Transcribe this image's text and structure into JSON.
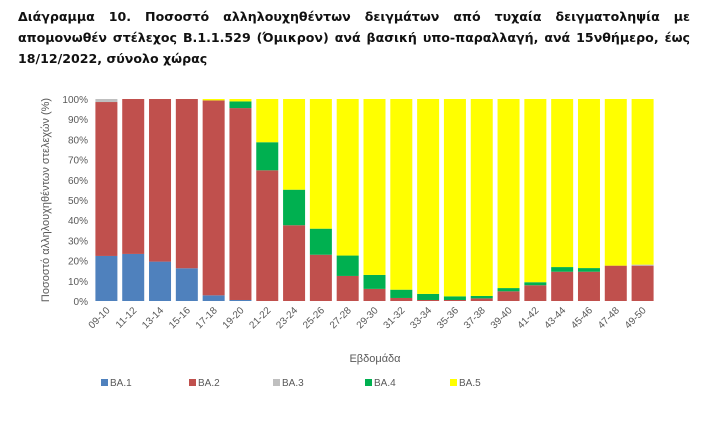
{
  "title": "Διάγραμμα 10. Ποσοστό αλληλουχηθέντων δειγμάτων από τυχαία δειγματοληψία με απομονωθέν στέλεχος Β.1.1.529 (Όμικρον) ανά βασική υπο-παραλλαγή, ανά 15νθήμερο, έως 18/12/2022, σύνολο χώρας",
  "chart_data": {
    "type": "bar",
    "stacked": true,
    "percent": true,
    "xlabel": "Εβδομάδα",
    "ylabel": "Ποσοστό αλληλουχηθέντων στελεχών (%)",
    "ylim": [
      0,
      100
    ],
    "yticks": [
      "0%",
      "10%",
      "20%",
      "30%",
      "40%",
      "50%",
      "60%",
      "70%",
      "80%",
      "90%",
      "100%"
    ],
    "legend_position": "bottom",
    "grid": false,
    "categories": [
      "09-10",
      "11-12",
      "13-14",
      "15-16",
      "17-18",
      "19-20",
      "21-22",
      "23-24",
      "25-26",
      "27-28",
      "29-30",
      "31-32",
      "33-34",
      "35-36",
      "37-38",
      "39-40",
      "41-42",
      "43-44",
      "45-46",
      "47-48",
      "49-50"
    ],
    "series": [
      {
        "name": "BA.1",
        "color": "#4f81bd",
        "values": [
          22.3,
          23.3,
          19.5,
          16.2,
          2.8,
          0.5,
          0,
          0,
          0,
          0,
          0,
          0,
          0,
          0,
          0,
          0,
          0,
          0,
          0,
          0,
          0
        ]
      },
      {
        "name": "BA.2",
        "color": "#c0504d",
        "values": [
          76.2,
          76.7,
          80.5,
          83.8,
          96.5,
          95.0,
          64.7,
          37.5,
          22.9,
          12.4,
          6.0,
          1.5,
          0.5,
          0.5,
          1.3,
          4.8,
          7.8,
          14.5,
          14.5,
          17.5,
          17.5
        ]
      },
      {
        "name": "BA.3",
        "color": "#bfbfbf",
        "values": [
          1.5,
          0,
          0,
          0,
          0,
          0,
          0,
          0,
          0,
          0,
          0,
          0,
          0,
          0,
          0,
          0,
          0,
          0,
          0,
          0,
          0.5
        ]
      },
      {
        "name": "BA.4",
        "color": "#00b050",
        "values": [
          0,
          0,
          0,
          0,
          0,
          3.3,
          13.9,
          17.6,
          12.9,
          10.1,
          6.9,
          4.1,
          3.0,
          1.8,
          1.2,
          1.6,
          1.5,
          2.3,
          1.8,
          0,
          0
        ]
      },
      {
        "name": "BA.5",
        "color": "#ffff00",
        "values": [
          0,
          0,
          0,
          0,
          0.7,
          1.2,
          21.4,
          44.9,
          64.2,
          77.5,
          87.1,
          94.4,
          96.5,
          97.7,
          97.5,
          93.6,
          90.7,
          83.2,
          83.7,
          82.5,
          82.0
        ]
      }
    ]
  }
}
